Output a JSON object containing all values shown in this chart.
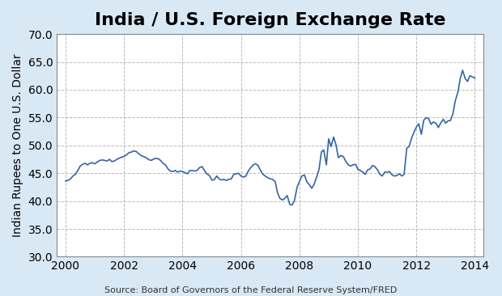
{
  "title": "India / U.S. Foreign Exchange Rate",
  "ylabel": "Indian Rupees to One U.S. Dollar",
  "source": "Source: Board of Governors of the Federal Reserve System/FRED",
  "xlim": [
    1999.7,
    2014.3
  ],
  "ylim": [
    30.0,
    70.0
  ],
  "yticks": [
    30.0,
    35.0,
    40.0,
    45.0,
    50.0,
    55.0,
    60.0,
    65.0,
    70.0
  ],
  "xticks": [
    2000,
    2002,
    2004,
    2006,
    2008,
    2010,
    2012,
    2014
  ],
  "line_color": "#3465a4",
  "background_color": "#d9e8f5",
  "plot_bg_color": "#ffffff",
  "grid_color": "#aaaaaa",
  "title_fontsize": 16,
  "label_fontsize": 10,
  "tick_fontsize": 10,
  "source_fontsize": 8,
  "data": {
    "dates": [
      2000.0,
      2000.08,
      2000.17,
      2000.25,
      2000.33,
      2000.42,
      2000.5,
      2000.58,
      2000.67,
      2000.75,
      2000.83,
      2000.92,
      2001.0,
      2001.08,
      2001.17,
      2001.25,
      2001.33,
      2001.42,
      2001.5,
      2001.58,
      2001.67,
      2001.75,
      2001.83,
      2001.92,
      2002.0,
      2002.08,
      2002.17,
      2002.25,
      2002.33,
      2002.42,
      2002.5,
      2002.58,
      2002.67,
      2002.75,
      2002.83,
      2002.92,
      2003.0,
      2003.08,
      2003.17,
      2003.25,
      2003.33,
      2003.42,
      2003.5,
      2003.58,
      2003.67,
      2003.75,
      2003.83,
      2003.92,
      2004.0,
      2004.08,
      2004.17,
      2004.25,
      2004.33,
      2004.42,
      2004.5,
      2004.58,
      2004.67,
      2004.75,
      2004.83,
      2004.92,
      2005.0,
      2005.08,
      2005.17,
      2005.25,
      2005.33,
      2005.42,
      2005.5,
      2005.58,
      2005.67,
      2005.75,
      2005.83,
      2005.92,
      2006.0,
      2006.08,
      2006.17,
      2006.25,
      2006.33,
      2006.42,
      2006.5,
      2006.58,
      2006.67,
      2006.75,
      2006.83,
      2006.92,
      2007.0,
      2007.08,
      2007.17,
      2007.25,
      2007.33,
      2007.42,
      2007.5,
      2007.58,
      2007.67,
      2007.75,
      2007.83,
      2007.92,
      2008.0,
      2008.08,
      2008.17,
      2008.25,
      2008.33,
      2008.42,
      2008.5,
      2008.58,
      2008.67,
      2008.75,
      2008.83,
      2008.92,
      2009.0,
      2009.08,
      2009.17,
      2009.25,
      2009.33,
      2009.42,
      2009.5,
      2009.58,
      2009.67,
      2009.75,
      2009.83,
      2009.92,
      2010.0,
      2010.08,
      2010.17,
      2010.25,
      2010.33,
      2010.42,
      2010.5,
      2010.58,
      2010.67,
      2010.75,
      2010.83,
      2010.92,
      2011.0,
      2011.08,
      2011.17,
      2011.25,
      2011.33,
      2011.42,
      2011.5,
      2011.58,
      2011.67,
      2011.75,
      2011.83,
      2011.92,
      2012.0,
      2012.08,
      2012.17,
      2012.25,
      2012.33,
      2012.42,
      2012.5,
      2012.58,
      2012.67,
      2012.75,
      2012.83,
      2012.92,
      2013.0,
      2013.08,
      2013.17,
      2013.25,
      2013.33,
      2013.42,
      2013.5,
      2013.58,
      2013.67,
      2013.75,
      2013.83,
      2013.92,
      2014.0
    ],
    "values": [
      43.6,
      43.7,
      44.0,
      44.5,
      44.8,
      45.5,
      46.3,
      46.6,
      46.8,
      46.5,
      46.8,
      46.9,
      46.7,
      47.0,
      47.3,
      47.4,
      47.3,
      47.2,
      47.5,
      47.1,
      47.2,
      47.5,
      47.7,
      47.9,
      48.0,
      48.3,
      48.7,
      48.8,
      49.0,
      48.9,
      48.5,
      48.2,
      48.0,
      47.8,
      47.5,
      47.3,
      47.5,
      47.7,
      47.6,
      47.3,
      46.8,
      46.5,
      45.8,
      45.4,
      45.3,
      45.5,
      45.2,
      45.4,
      45.3,
      45.1,
      44.9,
      45.5,
      45.5,
      45.4,
      45.5,
      46.0,
      46.2,
      45.5,
      44.9,
      44.6,
      43.8,
      43.8,
      44.5,
      44.0,
      43.8,
      43.9,
      43.7,
      43.9,
      44.0,
      44.8,
      44.9,
      45.0,
      44.5,
      44.3,
      44.5,
      45.4,
      46.0,
      46.5,
      46.7,
      46.4,
      45.5,
      44.8,
      44.5,
      44.2,
      44.0,
      43.9,
      43.5,
      41.5,
      40.5,
      40.2,
      40.5,
      41.0,
      39.4,
      39.3,
      40.1,
      42.5,
      43.5,
      44.5,
      44.7,
      43.5,
      43.0,
      42.3,
      43.0,
      44.2,
      45.7,
      48.8,
      49.2,
      46.5,
      51.2,
      49.8,
      51.5,
      50.1,
      47.8,
      48.2,
      48.0,
      47.2,
      46.5,
      46.3,
      46.5,
      46.6,
      45.7,
      45.5,
      45.2,
      44.8,
      45.6,
      45.8,
      46.4,
      46.2,
      45.6,
      44.8,
      44.5,
      45.2,
      45.2,
      45.3,
      44.7,
      44.5,
      44.6,
      44.9,
      44.5,
      44.8,
      49.5,
      49.8,
      51.2,
      52.4,
      53.3,
      53.9,
      52.0,
      54.5,
      55.0,
      54.8,
      53.8,
      54.2,
      54.0,
      53.2,
      54.0,
      54.7,
      54.0,
      54.4,
      54.5,
      55.7,
      58.0,
      59.6,
      62.0,
      63.5,
      62.0,
      61.5,
      62.5,
      62.3,
      62.1
    ]
  }
}
